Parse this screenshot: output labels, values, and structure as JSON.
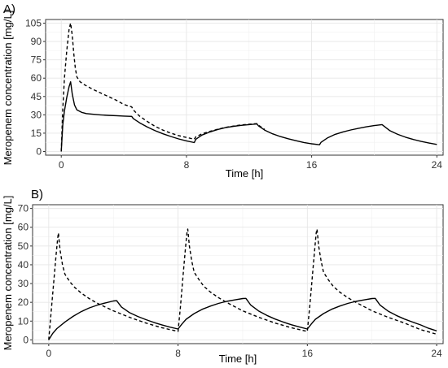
{
  "chart_data": [
    {
      "panel_label": "A)",
      "type": "line",
      "xlabel": "Time [h]",
      "ylabel": "Meropenem concentration [mg/L]",
      "xlim": [
        -1,
        24.4
      ],
      "ylim": [
        -3,
        108
      ],
      "xticks": [
        0,
        8,
        16,
        24
      ],
      "xtick_labels": [
        "0",
        "8",
        "16",
        "24"
      ],
      "yticks": [
        0,
        15,
        30,
        45,
        60,
        75,
        90,
        105
      ],
      "ytick_labels": [
        "0",
        "15",
        "30",
        "45",
        "60",
        "75",
        "90",
        "105"
      ],
      "grid": true,
      "series": [
        {
          "style": "solid",
          "x": [
            0,
            0.1,
            0.2,
            0.35,
            0.5,
            0.6,
            0.7,
            0.85,
            1.0,
            1.3,
            1.6,
            2.0,
            2.5,
            3.0,
            3.5,
            4.0,
            4.5,
            4.6,
            5.0,
            5.5,
            6.0,
            6.5,
            7.0,
            7.5,
            8.0,
            8.5,
            8.6,
            9.0,
            9.5,
            10.0,
            10.5,
            11.0,
            11.5,
            12.0,
            12.5,
            12.6,
            13.0,
            13.5,
            14.0,
            14.5,
            15.0,
            15.5,
            16.0,
            16.5,
            16.6,
            17.0,
            17.5,
            18.0,
            18.5,
            19.0,
            19.5,
            20.0,
            20.5,
            20.6,
            21.0,
            21.5,
            22.0,
            22.5,
            23.0,
            23.5,
            24.0
          ],
          "y": [
            0,
            22,
            33,
            44,
            53,
            57,
            47,
            38,
            34,
            32,
            31,
            30.5,
            30,
            29.6,
            29.3,
            29,
            28.7,
            27,
            23.5,
            20,
            17,
            14.5,
            12.3,
            10.3,
            8.7,
            7.3,
            10,
            13.5,
            16,
            18,
            19.5,
            20.6,
            21.4,
            22,
            22.5,
            21,
            17.5,
            14.5,
            12.2,
            10.4,
            8.8,
            7.4,
            6.3,
            5.5,
            7.5,
            11,
            14,
            16,
            17.6,
            19,
            20.2,
            21.2,
            22,
            21,
            17,
            14,
            11.7,
            9.8,
            8.2,
            6.9,
            5.8
          ]
        },
        {
          "style": "dashed",
          "x": [
            0,
            0.1,
            0.2,
            0.35,
            0.5,
            0.6,
            0.7,
            0.8,
            0.9,
            1.0,
            1.2,
            1.5,
            2.0,
            2.5,
            3.0,
            3.5,
            4.0,
            4.5,
            4.6,
            5.0,
            5.5,
            6.0,
            6.5,
            7.0,
            7.5,
            8.0,
            8.5,
            8.6,
            9.0,
            9.5,
            10.0,
            10.5,
            11.0,
            11.5,
            12.0,
            12.5,
            12.6,
            13.0
          ],
          "y": [
            0,
            35,
            60,
            82,
            100,
            105,
            95,
            80,
            68,
            61,
            57,
            54.5,
            51,
            48,
            45,
            42,
            38.5,
            36.5,
            34,
            29,
            24.5,
            20.5,
            17.5,
            15,
            13,
            11.5,
            10,
            12,
            14.5,
            16.5,
            18.2,
            19.7,
            20.8,
            21.7,
            22.3,
            22.8,
            21.5,
            18
          ]
        }
      ]
    },
    {
      "panel_label": "B)",
      "type": "line",
      "xlabel": "Time [h]",
      "ylabel": "Meropenem concentration [mg/L]",
      "xlim": [
        -1,
        24.4
      ],
      "ylim": [
        -2,
        72
      ],
      "xticks": [
        0,
        8,
        16,
        24
      ],
      "xtick_labels": [
        "0",
        "8",
        "16",
        "24"
      ],
      "yticks": [
        0,
        10,
        20,
        30,
        40,
        50,
        60,
        70
      ],
      "ytick_labels": [
        "0",
        "10",
        "20",
        "30",
        "40",
        "50",
        "60",
        "70"
      ],
      "grid": true,
      "series": [
        {
          "style": "solid",
          "x": [
            0,
            0.25,
            0.5,
            1,
            1.5,
            2,
            2.5,
            3,
            3.5,
            4,
            4.2,
            4.5,
            5,
            5.5,
            6,
            6.5,
            7,
            7.5,
            8,
            8.25,
            8.5,
            9,
            9.5,
            10,
            10.5,
            11,
            11.5,
            12,
            12.2,
            12.5,
            13,
            13.5,
            14,
            14.5,
            15,
            15.5,
            16,
            16.25,
            16.5,
            17,
            17.5,
            18,
            18.5,
            19,
            19.5,
            20,
            20.2,
            20.5,
            21,
            21.5,
            22,
            22.5,
            23,
            23.5,
            24
          ],
          "y": [
            0,
            3.5,
            6,
            9.5,
            12.5,
            15,
            17,
            18.5,
            19.7,
            20.7,
            20.9,
            17.5,
            14.5,
            12.5,
            10.8,
            9.3,
            8,
            6.8,
            5.8,
            8.5,
            11,
            14,
            16.3,
            18,
            19.4,
            20.5,
            21.3,
            22,
            22.1,
            18.5,
            15.3,
            13,
            11.1,
            9.5,
            8.1,
            6.9,
            5.8,
            8.5,
            11,
            14,
            16.3,
            18,
            19.4,
            20.5,
            21.3,
            22,
            22.1,
            18.5,
            15.3,
            13,
            11.1,
            9.5,
            8,
            6.2,
            4.8
          ]
        },
        {
          "style": "dashed",
          "x": [
            0,
            0.15,
            0.3,
            0.45,
            0.55,
            0.6,
            0.7,
            0.85,
            1,
            1.3,
            1.6,
            2,
            2.5,
            3,
            4,
            5,
            6,
            7,
            8,
            8.15,
            8.3,
            8.45,
            8.55,
            8.6,
            8.7,
            8.85,
            9,
            9.3,
            9.6,
            10,
            10.5,
            11,
            12,
            13,
            14,
            15,
            16,
            16.15,
            16.3,
            16.45,
            16.55,
            16.6,
            16.7,
            16.85,
            17,
            17.3,
            17.6,
            18,
            18.5,
            19,
            20,
            21,
            22,
            23,
            24
          ],
          "y": [
            0,
            15,
            30,
            45,
            54,
            57,
            48,
            40,
            35,
            31,
            28,
            25,
            22,
            19.5,
            15.5,
            12,
            9,
            6.5,
            4.5,
            18,
            33,
            48,
            57,
            59,
            50,
            42,
            36,
            32,
            28.5,
            25.5,
            22.5,
            20,
            15.5,
            12,
            9,
            6.5,
            4.5,
            18,
            33,
            48,
            57,
            59,
            50,
            42,
            36,
            32,
            28.5,
            25.5,
            22.5,
            20,
            15.5,
            12,
            9,
            5.5,
            3
          ]
        }
      ]
    }
  ]
}
